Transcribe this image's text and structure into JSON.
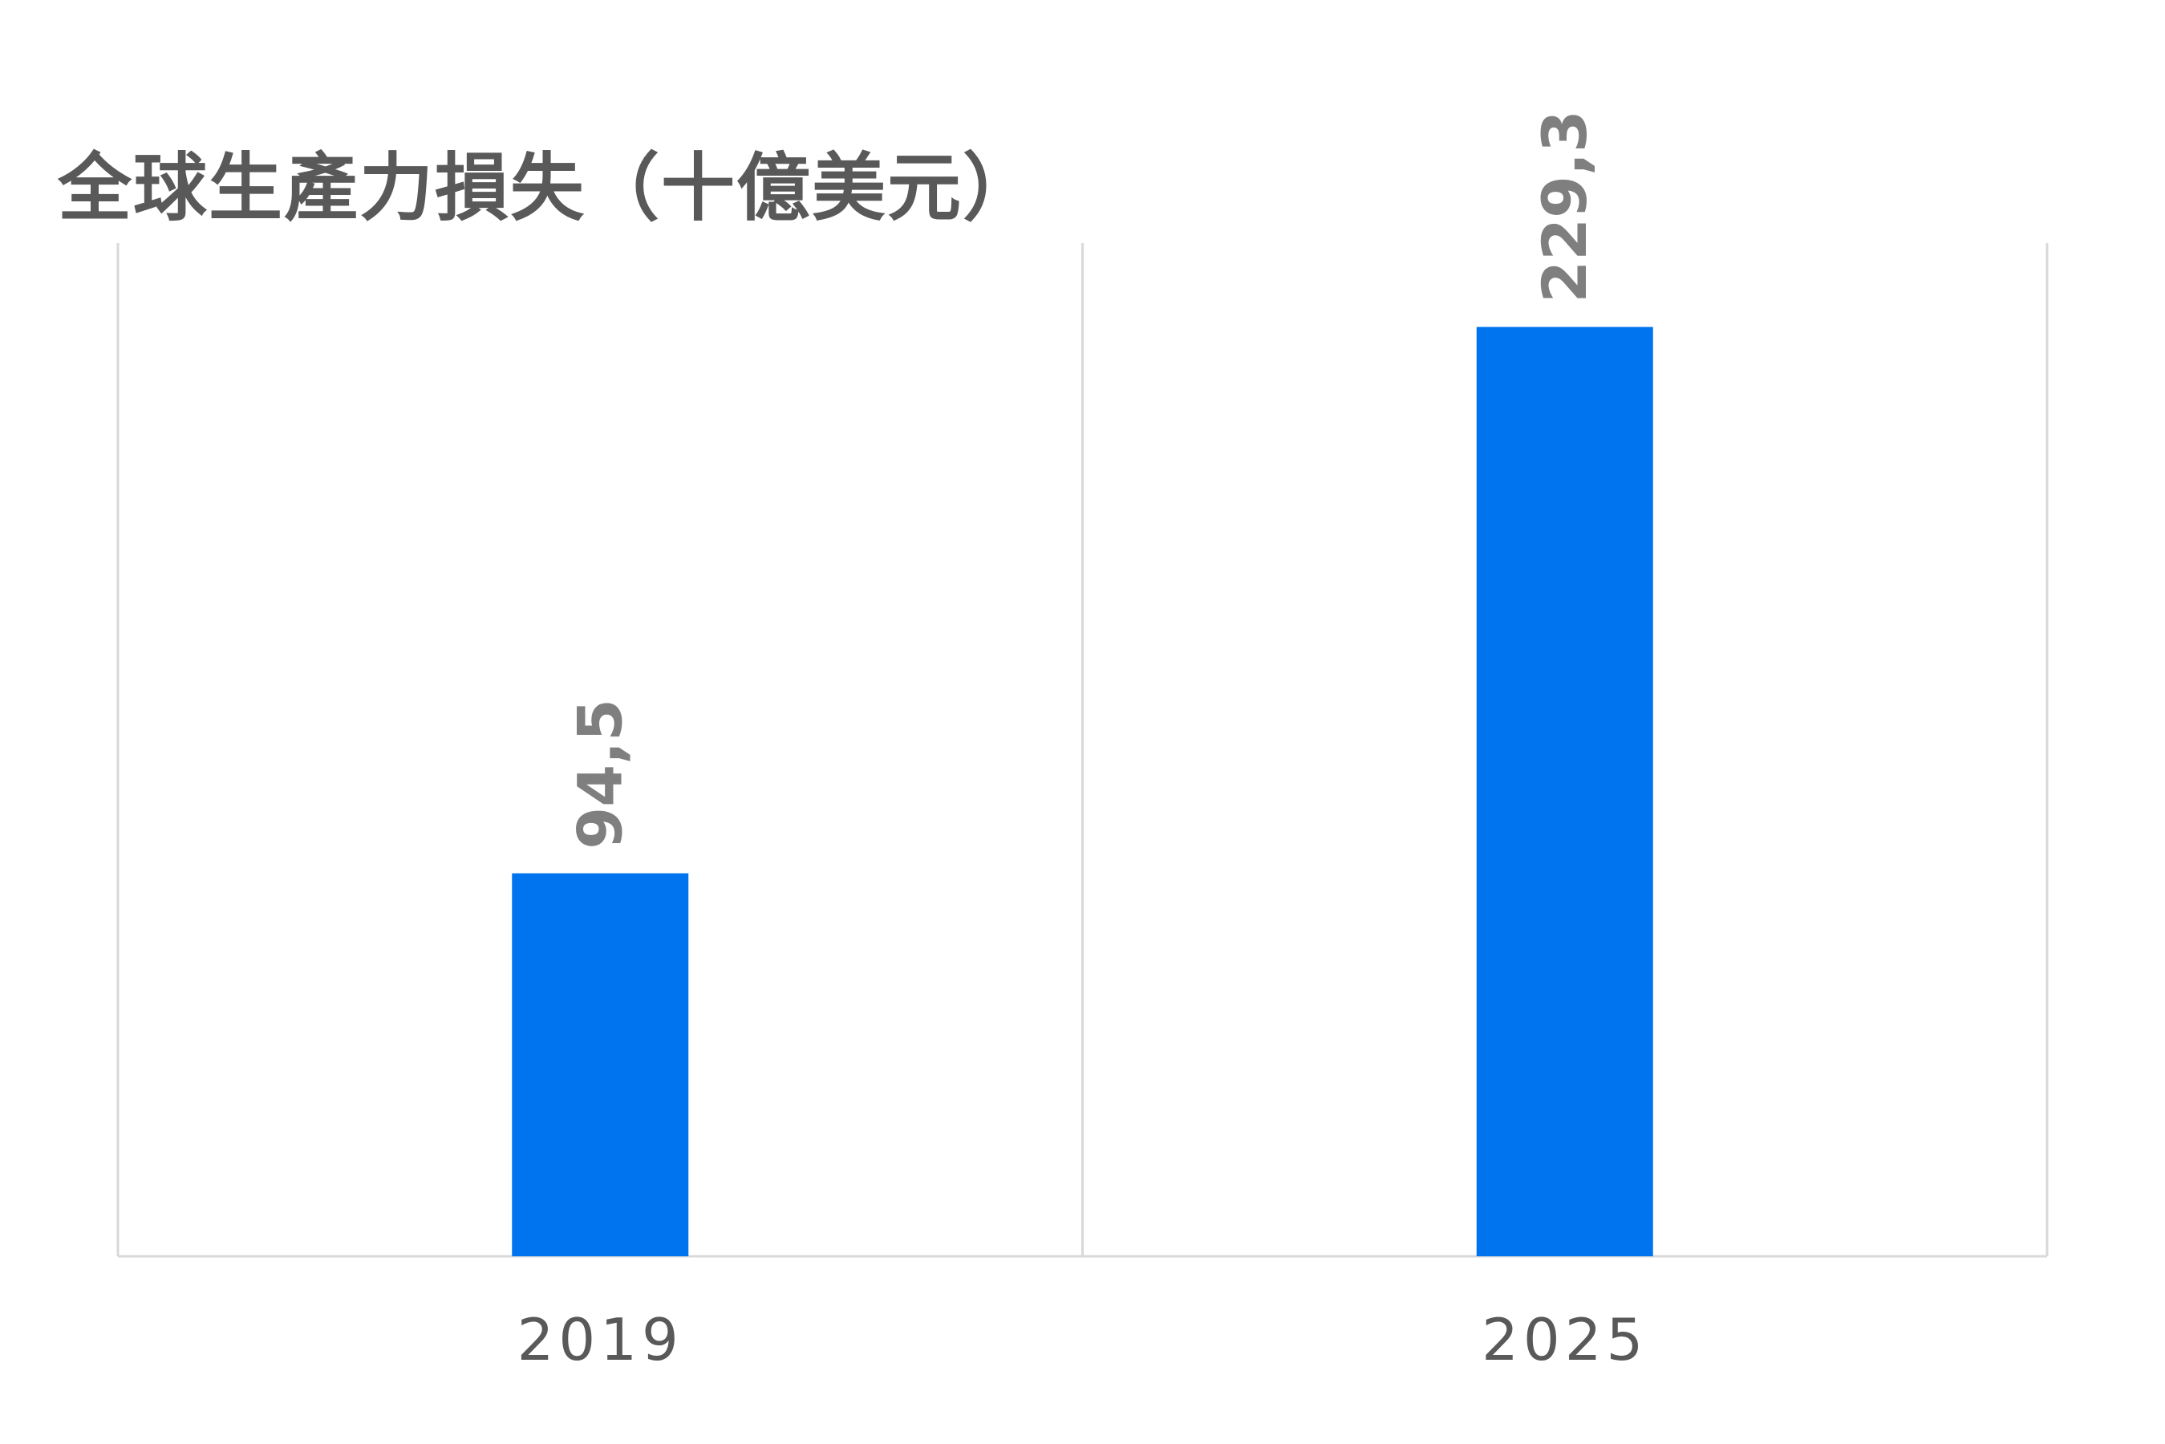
{
  "chart_data": {
    "type": "bar",
    "title": "全球生產力損失（十億美元）",
    "xlabel": "",
    "ylabel": "",
    "categories": [
      "2019",
      "2025"
    ],
    "values": [
      94.5,
      229.3
    ],
    "data_labels": [
      "94,5",
      "229,3"
    ],
    "ylim": [
      0,
      250
    ],
    "grid": "vertical category separators",
    "legend": "none",
    "colors": {
      "bar": "#0073EE",
      "text": "#595959",
      "data_label": "#7F7F7F",
      "axis": "#D9D9D9"
    }
  }
}
